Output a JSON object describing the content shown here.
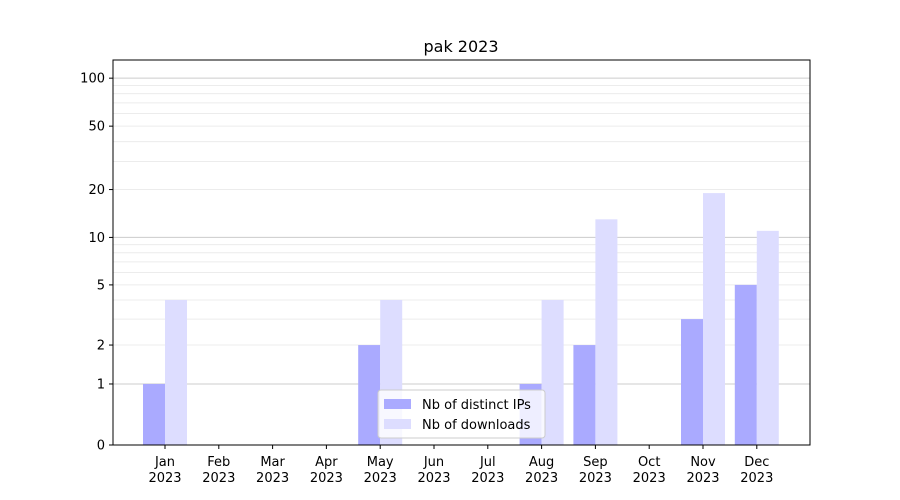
{
  "chart_data": {
    "type": "bar",
    "title": "pak 2023",
    "xlabel": "",
    "ylabel": "",
    "y_scale": "symlog",
    "ylim": [
      0,
      130
    ],
    "y_ticks": [
      0,
      1,
      2,
      5,
      10,
      20,
      50,
      100
    ],
    "grid": "horizontal, major and minor",
    "legend_position": "lower center",
    "categories": [
      [
        "Jan",
        "2023"
      ],
      [
        "Feb",
        "2023"
      ],
      [
        "Mar",
        "2023"
      ],
      [
        "Apr",
        "2023"
      ],
      [
        "May",
        "2023"
      ],
      [
        "Jun",
        "2023"
      ],
      [
        "Jul",
        "2023"
      ],
      [
        "Aug",
        "2023"
      ],
      [
        "Sep",
        "2023"
      ],
      [
        "Oct",
        "2023"
      ],
      [
        "Nov",
        "2023"
      ],
      [
        "Dec",
        "2023"
      ]
    ],
    "series": [
      {
        "name": "Nb of distinct IPs",
        "color": "#aaaaff",
        "values": [
          1,
          0,
          0,
          0,
          2,
          0,
          0,
          1,
          2,
          0,
          3,
          5
        ]
      },
      {
        "name": "Nb of downloads",
        "color": "#ddddff",
        "values": [
          4,
          0,
          0,
          0,
          4,
          0,
          0,
          4,
          13,
          0,
          19,
          11
        ]
      }
    ]
  }
}
